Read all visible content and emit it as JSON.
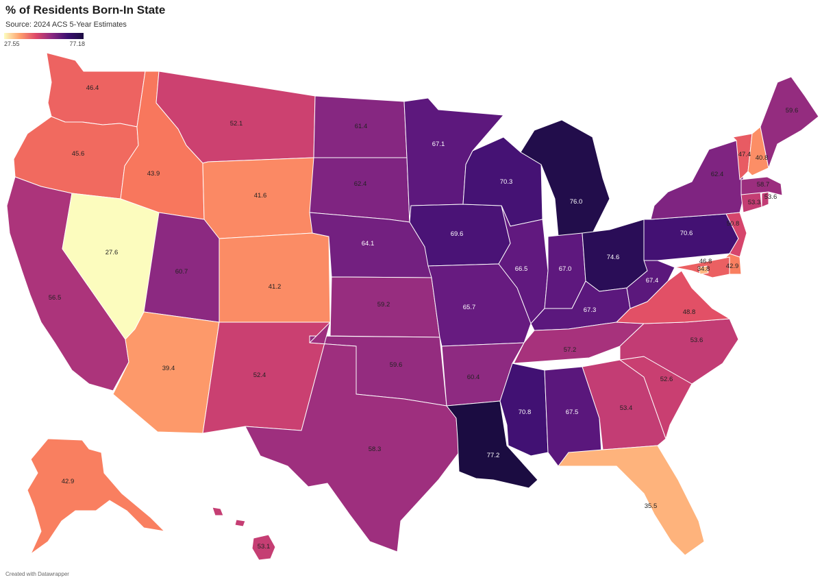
{
  "title": "% of Residents Born-In State",
  "subtitle": "Source: 2024 ACS 5-Year Estimates",
  "legend": {
    "min": "27.55",
    "max": "77.18"
  },
  "footer": "Created with Datawrapper",
  "colors": {
    "low": "#fcfdbf",
    "high": "#1b0c41"
  },
  "states": [
    {
      "id": "WA",
      "value": "46.4"
    },
    {
      "id": "OR",
      "value": "45.6"
    },
    {
      "id": "CA",
      "value": "56.5"
    },
    {
      "id": "NV",
      "value": "27.6"
    },
    {
      "id": "ID",
      "value": "43.9"
    },
    {
      "id": "MT",
      "value": "52.1"
    },
    {
      "id": "WY",
      "value": "41.6"
    },
    {
      "id": "UT",
      "value": "60.7"
    },
    {
      "id": "AZ",
      "value": "39.4"
    },
    {
      "id": "CO",
      "value": "41.2"
    },
    {
      "id": "NM",
      "value": "52.4"
    },
    {
      "id": "ND",
      "value": "61.4"
    },
    {
      "id": "SD",
      "value": "62.4"
    },
    {
      "id": "NE",
      "value": "64.1"
    },
    {
      "id": "KS",
      "value": "59.2"
    },
    {
      "id": "OK",
      "value": "59.6"
    },
    {
      "id": "TX",
      "value": "58.3"
    },
    {
      "id": "MN",
      "value": "67.1"
    },
    {
      "id": "IA",
      "value": "69.6"
    },
    {
      "id": "MO",
      "value": "65.7"
    },
    {
      "id": "AR",
      "value": "60.4"
    },
    {
      "id": "LA",
      "value": "77.2"
    },
    {
      "id": "WI",
      "value": "70.3"
    },
    {
      "id": "IL",
      "value": "66.5"
    },
    {
      "id": "MI",
      "value": "76.0"
    },
    {
      "id": "IN",
      "value": "67.0"
    },
    {
      "id": "OH",
      "value": "74.6"
    },
    {
      "id": "KY",
      "value": "67.3"
    },
    {
      "id": "TN",
      "value": "57.2"
    },
    {
      "id": "MS",
      "value": "70.8"
    },
    {
      "id": "AL",
      "value": "67.5"
    },
    {
      "id": "GA",
      "value": "53.4"
    },
    {
      "id": "FL",
      "value": "35.5"
    },
    {
      "id": "SC",
      "value": "52.6"
    },
    {
      "id": "NC",
      "value": "53.6"
    },
    {
      "id": "VA",
      "value": "48.8"
    },
    {
      "id": "WV",
      "value": "67.4"
    },
    {
      "id": "PA",
      "value": "70.6"
    },
    {
      "id": "NY",
      "value": "62.4"
    },
    {
      "id": "NJ",
      "value": "50.8"
    },
    {
      "id": "DE",
      "value": "42.9"
    },
    {
      "id": "MD",
      "value": "46.8"
    },
    {
      "id": "DC",
      "value": "34.8"
    },
    {
      "id": "CT",
      "value": "53.3"
    },
    {
      "id": "RI",
      "value": "53.6"
    },
    {
      "id": "MA",
      "value": "58.7"
    },
    {
      "id": "VT",
      "value": "47.4"
    },
    {
      "id": "NH",
      "value": "40.8"
    },
    {
      "id": "ME",
      "value": "59.6"
    },
    {
      "id": "AK",
      "value": "42.9"
    },
    {
      "id": "HI",
      "value": "53.1"
    }
  ]
}
